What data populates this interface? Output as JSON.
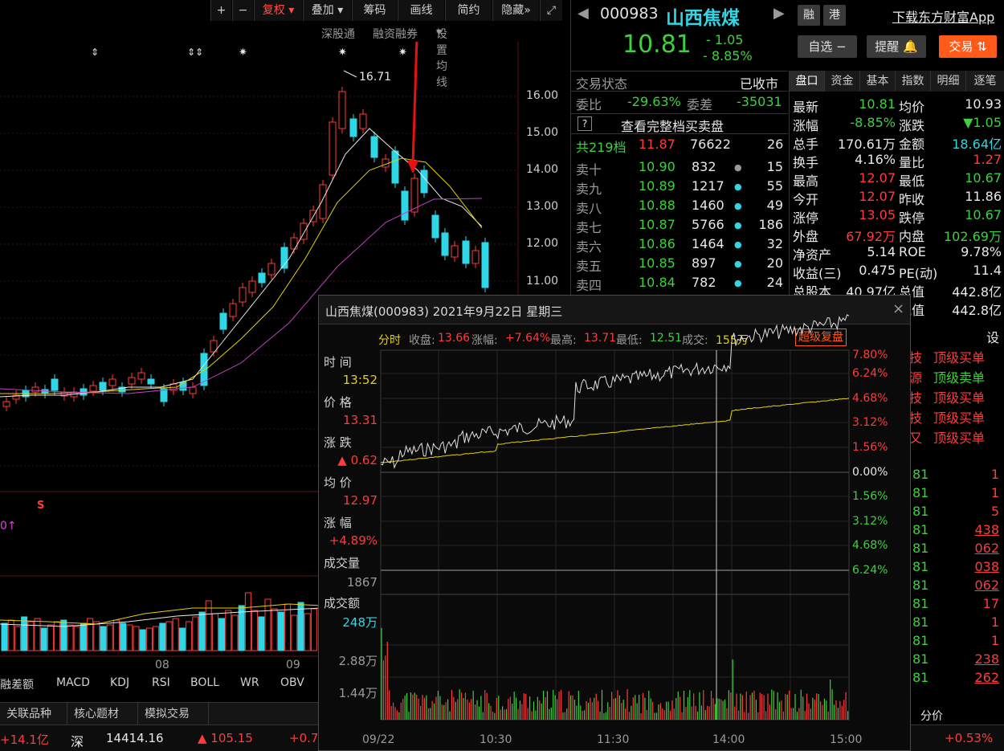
{
  "toolbar": {
    "plus": "+",
    "minus": "−",
    "fuquan": "复权",
    "diejia": "叠加",
    "chouma": "筹码",
    "huaxian": "画线",
    "jianyue": "简约",
    "yincang": "隐藏"
  },
  "ma_links": {
    "shengutong": "深股通",
    "rongzi": "融资融券",
    "setting": "设置均线"
  },
  "kchart": {
    "price_ticks": [
      "16.00",
      "15.00",
      "14.00",
      "13.00",
      "12.00",
      "11.00"
    ],
    "high_label": "16.71",
    "xaxis": [
      "08",
      "09"
    ],
    "s_marker": "S",
    "zero_arrow": "0↑"
  },
  "indicator_tabs": [
    "融差额",
    "MACD",
    "KDJ",
    "RSI",
    "BOLL",
    "WR",
    "OBV"
  ],
  "bottom_tabs": [
    "关联品种",
    "核心题材",
    "模拟交易"
  ],
  "statusbar": {
    "net": "+14.1亿",
    "market": "深",
    "index": "14414.16",
    "change": "▲ 105.15",
    "pct": "+0.7",
    "fenjia": "分价",
    "right_pct": "+0.53%"
  },
  "stock": {
    "code": "000983",
    "name": "山西焦煤",
    "rong": "融",
    "gang": "港",
    "app_link": "下载东方财富App",
    "price": "10.81",
    "change": "- 1.05",
    "pct": "- 8.85%",
    "zixuan": "自选 −",
    "tixing": "提醒 🔔",
    "jiaoyi": "交易 ⇅"
  },
  "orderbook": {
    "status_label": "交易状态",
    "status": "已收市",
    "weibi_label": "委比",
    "weibi": "-29.63%",
    "weicha_label": "委差",
    "weicha": "-35031",
    "full_book": "查看完整档买卖盘",
    "total_label": "共219档",
    "total_price": "11.87",
    "total_vol": "76622",
    "total_cnt": "26",
    "rows": [
      {
        "label": "卖十",
        "price": "10.90",
        "vol": "832",
        "cnt": "15"
      },
      {
        "label": "卖九",
        "price": "10.89",
        "vol": "1217",
        "cnt": "55"
      },
      {
        "label": "卖八",
        "price": "10.88",
        "vol": "1460",
        "cnt": "49"
      },
      {
        "label": "卖七",
        "price": "10.87",
        "vol": "5766",
        "cnt": "186"
      },
      {
        "label": "卖六",
        "price": "10.86",
        "vol": "1464",
        "cnt": "32"
      },
      {
        "label": "卖五",
        "price": "10.85",
        "vol": "897",
        "cnt": "20"
      },
      {
        "label": "卖四",
        "price": "10.84",
        "vol": "782",
        "cnt": "24"
      }
    ]
  },
  "quote": {
    "tabs": [
      "盘口",
      "资金",
      "基本",
      "指数",
      "明细",
      "逐笔"
    ],
    "rows": [
      {
        "l1": "最新",
        "v1": "10.81",
        "l2": "均价",
        "v2": "10.93"
      },
      {
        "l1": "涨幅",
        "v1": "-8.85%",
        "l2": "涨跌",
        "v2": "▼1.05"
      },
      {
        "l1": "总手",
        "v1": "170.61万",
        "l2": "金额",
        "v2": "18.64亿"
      },
      {
        "l1": "换手",
        "v1": "4.16%",
        "l2": "量比",
        "v2": "1.27"
      },
      {
        "l1": "最高",
        "v1": "12.07",
        "l2": "最低",
        "v2": "10.67"
      },
      {
        "l1": "今开",
        "v1": "12.07",
        "l2": "昨收",
        "v2": "11.86"
      },
      {
        "l1": "涨停",
        "v1": "13.05",
        "l2": "跌停",
        "v2": "10.67"
      },
      {
        "l1": "外盘",
        "v1": "67.92万",
        "l2": "内盘",
        "v2": "102.69万"
      },
      {
        "l1": "净资产",
        "v1": "5.14",
        "l2": "ROE",
        "v2": "9.78%"
      },
      {
        "l1": "收益(三)",
        "v1": "0.475",
        "l2": "PE(动)",
        "v2": "11.4"
      },
      {
        "l1": "总股本",
        "v1": "40.97亿",
        "l2": "总值",
        "v2": "442.8亿"
      },
      {
        "l1": "",
        "v1": "",
        "l2": "流值",
        "v2": "442.8亿"
      }
    ]
  },
  "right_list": {
    "she": "设",
    "signals": [
      {
        "a": "技",
        "b": "顶级买单"
      },
      {
        "a": "源",
        "b": "顶级卖单"
      },
      {
        "a": "技",
        "b": "顶级买单"
      },
      {
        "a": "技",
        "b": "顶级买单"
      },
      {
        "a": "又",
        "b": "顶级买单"
      }
    ],
    "trades": [
      {
        "p": "81",
        "v": "1"
      },
      {
        "p": "81",
        "v": "1"
      },
      {
        "p": "81",
        "v": "5"
      },
      {
        "p": "81",
        "v": "438"
      },
      {
        "p": "81",
        "v": "062"
      },
      {
        "p": "81",
        "v": "038"
      },
      {
        "p": "81",
        "v": "062"
      },
      {
        "p": "81",
        "v": "17"
      },
      {
        "p": "81",
        "v": "1"
      },
      {
        "p": "81",
        "v": "1"
      },
      {
        "p": "81",
        "v": "238"
      },
      {
        "p": "81",
        "v": "262"
      }
    ]
  },
  "popup": {
    "title": "山西焦煤(000983) 2021年9月22日 星期三",
    "close": "×",
    "info": {
      "fenshi": "分时",
      "close_lbl": "收盘:",
      "close": "13.66",
      "zf_lbl": "涨幅:",
      "zf": "+7.64%",
      "high_lbl": "最高:",
      "high": "13.71",
      "low_lbl": "最低:",
      "low": "12.51",
      "vol_lbl": "成交:",
      "vol": "155万",
      "super": "超级复盘"
    },
    "left": {
      "time_lbl": "时 间",
      "time": "13:52",
      "price_lbl": "价 格",
      "price": "13.31",
      "chg_lbl": "涨 跌",
      "chg": "▲ 0.62",
      "avg_lbl": "均 价",
      "avg": "12.97",
      "pct_lbl": "涨 幅",
      "pct": "+4.89%",
      "vol_lbl": "成交量",
      "vol": "1867",
      "amt_lbl": "成交额",
      "amt": "248万",
      "vol_tick1": "2.88万",
      "vol_tick2": "1.44万"
    },
    "pct_axis_up": [
      "7.80%",
      "6.24%",
      "4.68%",
      "3.12%",
      "1.56%",
      "0.00%"
    ],
    "pct_axis_down": [
      "1.56%",
      "3.12%",
      "4.68%",
      "6.24%"
    ],
    "time_axis": [
      "09/22",
      "10:30",
      "11:30",
      "14:00",
      "15:00"
    ]
  },
  "colors": {
    "up": "#ff3b3b",
    "down": "#2ed6e6",
    "accent": "#ff6a00",
    "gold": "#e8d000"
  }
}
